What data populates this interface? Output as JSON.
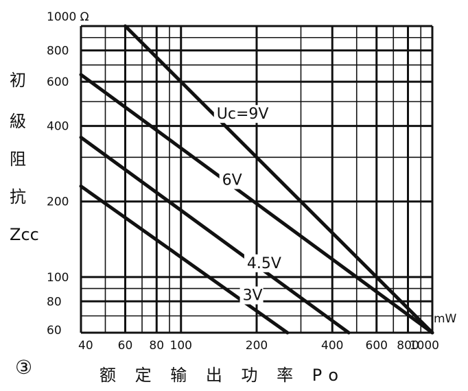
{
  "chart_data": {
    "type": "line",
    "x_scale": "log",
    "y_scale": "log",
    "xlim": [
      40,
      1000
    ],
    "ylim": [
      60,
      1000
    ],
    "x_ticks": [
      40,
      60,
      80,
      100,
      200,
      400,
      600,
      800,
      1000
    ],
    "x_tick_labels": [
      "40",
      "60",
      "80",
      "100",
      "200",
      "400",
      "600",
      "800",
      "1000"
    ],
    "x_unit": "mW",
    "y_ticks": [
      60,
      80,
      100,
      200,
      400,
      600,
      800,
      1000
    ],
    "y_tick_labels": [
      "60",
      "80",
      "100",
      "200",
      "400",
      "600",
      "800",
      "1000 Ω"
    ],
    "ylabel_chars": [
      "初",
      "級",
      "阻",
      "抗"
    ],
    "ylabel_symbol": "Zcc",
    "xlabel": "额 定 输 出 功 率 Po",
    "figure_number": "③",
    "grid": true,
    "series": [
      {
        "name": "Uc=9V",
        "x": [
          60,
          1000
        ],
        "y": [
          1000,
          60
        ]
      },
      {
        "name": "6V",
        "x": [
          40,
          1000
        ],
        "y": [
          640,
          60
        ]
      },
      {
        "name": "4.5V",
        "x": [
          40,
          465
        ],
        "y": [
          360,
          60
        ]
      },
      {
        "name": "3V",
        "x": [
          40,
          265
        ],
        "y": [
          230,
          60
        ]
      }
    ]
  }
}
